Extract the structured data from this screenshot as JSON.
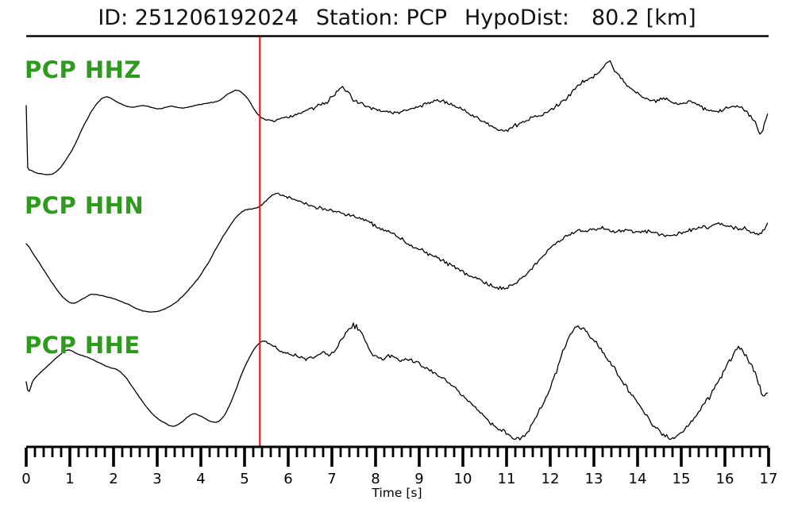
{
  "header": {
    "id_text": "ID: 251206192024",
    "station_text": "Station: PCP",
    "hypodist_label": "HypoDist:",
    "hypodist_value": "80.2 [km]"
  },
  "chart_data": {
    "type": "line",
    "kind": "three-component seismogram (waveform viewer)",
    "title": "ID: 251206192024   Station: PCP   HypoDist:    80.2 [km]",
    "xlabel": "Time [s]",
    "ylabel": "",
    "x_range": [
      0,
      17
    ],
    "x_major_tick_step": 1,
    "x_minor_tick_step": 0.2,
    "x_tick_labels": [
      "0",
      "1",
      "2",
      "3",
      "4",
      "5",
      "6",
      "7",
      "8",
      "9",
      "10",
      "11",
      "12",
      "13",
      "14",
      "15",
      "16",
      "17"
    ],
    "grid": false,
    "legend_position": "trace label at top-left of each row",
    "marker_line": {
      "name": "phase-pick",
      "t": 5.35,
      "color": "#ff0000"
    },
    "colors": {
      "trace": "#000000",
      "label_green": "#2e9b1e",
      "axis": "#000000",
      "title_text": "#111111",
      "background": "#ffffff"
    },
    "series": [
      {
        "label": "PCP HHZ",
        "seed": 101,
        "keypoints": [
          [
            0,
            12
          ],
          [
            0.01,
            -60
          ],
          [
            0.13,
            -70
          ],
          [
            0.35,
            -74
          ],
          [
            0.67,
            -72
          ],
          [
            1.04,
            -45
          ],
          [
            1.4,
            -5
          ],
          [
            1.67,
            17
          ],
          [
            1.85,
            23
          ],
          [
            2.13,
            15
          ],
          [
            2.4,
            10
          ],
          [
            2.67,
            12
          ],
          [
            3.04,
            8
          ],
          [
            3.31,
            11
          ],
          [
            3.58,
            9
          ],
          [
            3.85,
            12
          ],
          [
            4.13,
            15
          ],
          [
            4.4,
            18
          ],
          [
            4.67,
            28
          ],
          [
            4.85,
            31
          ],
          [
            5.07,
            21
          ],
          [
            5.25,
            5
          ],
          [
            5.4,
            -3
          ],
          [
            5.58,
            -7
          ],
          [
            5.85,
            -4
          ],
          [
            6.22,
            2
          ],
          [
            6.58,
            9
          ],
          [
            6.89,
            17
          ],
          [
            7.13,
            30
          ],
          [
            7.25,
            33
          ],
          [
            7.49,
            20
          ],
          [
            7.76,
            12
          ],
          [
            8.09,
            6
          ],
          [
            8.4,
            3
          ],
          [
            8.67,
            5
          ],
          [
            8.95,
            10
          ],
          [
            9.22,
            15
          ],
          [
            9.49,
            18
          ],
          [
            9.8,
            12
          ],
          [
            10.13,
            2
          ],
          [
            10.49,
            -8
          ],
          [
            10.89,
            -20
          ],
          [
            11.22,
            -13
          ],
          [
            11.55,
            -5
          ],
          [
            11.85,
            2
          ],
          [
            12.13,
            11
          ],
          [
            12.4,
            23
          ],
          [
            12.67,
            39
          ],
          [
            12.95,
            48
          ],
          [
            13.16,
            57
          ],
          [
            13.33,
            67
          ],
          [
            13.55,
            50
          ],
          [
            13.76,
            37
          ],
          [
            14.04,
            25
          ],
          [
            14.31,
            18
          ],
          [
            14.64,
            20
          ],
          [
            14.95,
            14
          ],
          [
            15.22,
            17
          ],
          [
            15.55,
            8
          ],
          [
            15.85,
            5
          ],
          [
            16.09,
            10
          ],
          [
            16.31,
            11
          ],
          [
            16.53,
            2
          ],
          [
            16.71,
            -10
          ],
          [
            16.8,
            -23
          ],
          [
            16.89,
            -13
          ],
          [
            17,
            2
          ]
        ],
        "noise": [
          [
            0,
            0.3
          ],
          [
            5.2,
            0.4
          ],
          [
            5.45,
            1.2
          ],
          [
            6,
            1.8
          ],
          [
            6.8,
            2.2
          ],
          [
            7.1,
            3.2
          ],
          [
            7.4,
            3.0
          ],
          [
            7.8,
            2.0
          ],
          [
            8.3,
            1.8
          ],
          [
            9,
            2.2
          ],
          [
            9.6,
            2.0
          ],
          [
            10.3,
            1.8
          ],
          [
            11,
            2.0
          ],
          [
            11.8,
            2.0
          ],
          [
            12.5,
            2.2
          ],
          [
            13.2,
            2.4
          ],
          [
            13.6,
            2.6
          ],
          [
            14.2,
            2.2
          ],
          [
            15,
            1.8
          ],
          [
            15.8,
            2.0
          ],
          [
            16.4,
            2.4
          ],
          [
            16.75,
            3.0
          ],
          [
            17,
            2.0
          ]
        ]
      },
      {
        "label": "PCP HHN",
        "seed": 202,
        "keypoints": [
          [
            0,
            3
          ],
          [
            0.16,
            -10
          ],
          [
            0.4,
            -30
          ],
          [
            0.64,
            -50
          ],
          [
            0.85,
            -65
          ],
          [
            1.07,
            -72
          ],
          [
            1.31,
            -66
          ],
          [
            1.49,
            -61
          ],
          [
            1.76,
            -63
          ],
          [
            2.04,
            -67
          ],
          [
            2.31,
            -73
          ],
          [
            2.58,
            -80
          ],
          [
            2.85,
            -83
          ],
          [
            3.13,
            -80
          ],
          [
            3.4,
            -72
          ],
          [
            3.67,
            -58
          ],
          [
            3.95,
            -40
          ],
          [
            4.18,
            -20
          ],
          [
            4.4,
            2
          ],
          [
            4.64,
            23
          ],
          [
            4.82,
            37
          ],
          [
            5.0,
            45
          ],
          [
            5.18,
            47
          ],
          [
            5.35,
            50
          ],
          [
            5.55,
            60
          ],
          [
            5.71,
            66
          ],
          [
            5.91,
            63
          ],
          [
            6.16,
            58
          ],
          [
            6.45,
            52
          ],
          [
            6.73,
            48
          ],
          [
            7.0,
            45
          ],
          [
            7.27,
            41
          ],
          [
            7.55,
            37
          ],
          [
            7.82,
            31
          ],
          [
            8.13,
            22
          ],
          [
            8.44,
            14
          ],
          [
            8.76,
            2
          ],
          [
            9.07,
            -6
          ],
          [
            9.36,
            -13
          ],
          [
            9.67,
            -22
          ],
          [
            9.98,
            -32
          ],
          [
            10.27,
            -40
          ],
          [
            10.58,
            -48
          ],
          [
            10.85,
            -53
          ],
          [
            11.13,
            -50
          ],
          [
            11.36,
            -40
          ],
          [
            11.58,
            -28
          ],
          [
            11.84,
            -12
          ],
          [
            12.09,
            2
          ],
          [
            12.35,
            12
          ],
          [
            12.62,
            18
          ],
          [
            12.89,
            21
          ],
          [
            13.18,
            22
          ],
          [
            13.45,
            18
          ],
          [
            13.73,
            20
          ],
          [
            14.0,
            17
          ],
          [
            14.27,
            19
          ],
          [
            14.55,
            15
          ],
          [
            14.82,
            13
          ],
          [
            15.07,
            18
          ],
          [
            15.35,
            22
          ],
          [
            15.62,
            25
          ],
          [
            15.85,
            28
          ],
          [
            16.07,
            25
          ],
          [
            16.31,
            23
          ],
          [
            16.55,
            19
          ],
          [
            16.75,
            15
          ],
          [
            16.89,
            20
          ],
          [
            17,
            29
          ]
        ],
        "noise": [
          [
            0,
            0.3
          ],
          [
            5.3,
            0.4
          ],
          [
            5.7,
            1.0
          ],
          [
            6.3,
            1.6
          ],
          [
            7,
            2.0
          ],
          [
            8,
            2.2
          ],
          [
            9,
            2.2
          ],
          [
            10,
            2.0
          ],
          [
            10.8,
            2.2
          ],
          [
            11.5,
            1.8
          ],
          [
            12.3,
            1.8
          ],
          [
            13,
            2.0
          ],
          [
            13.8,
            2.2
          ],
          [
            14.5,
            2.0
          ],
          [
            15.2,
            2.2
          ],
          [
            16,
            2.2
          ],
          [
            16.6,
            2.4
          ],
          [
            17,
            1.8
          ]
        ]
      },
      {
        "label": "PCP HHE",
        "seed": 303,
        "keypoints": [
          [
            0,
            -1
          ],
          [
            0.05,
            -14
          ],
          [
            0.15,
            0
          ],
          [
            0.31,
            10
          ],
          [
            0.49,
            19
          ],
          [
            0.71,
            30
          ],
          [
            0.95,
            39
          ],
          [
            1.18,
            34
          ],
          [
            1.44,
            29
          ],
          [
            1.67,
            23
          ],
          [
            1.91,
            17
          ],
          [
            2.09,
            14
          ],
          [
            2.27,
            5
          ],
          [
            2.45,
            -9
          ],
          [
            2.64,
            -24
          ],
          [
            2.82,
            -37
          ],
          [
            3.0,
            -47
          ],
          [
            3.18,
            -53
          ],
          [
            3.35,
            -57
          ],
          [
            3.53,
            -53
          ],
          [
            3.71,
            -45
          ],
          [
            3.84,
            -41
          ],
          [
            3.98,
            -44
          ],
          [
            4.15,
            -49
          ],
          [
            4.31,
            -52
          ],
          [
            4.45,
            -49
          ],
          [
            4.6,
            -37
          ],
          [
            4.78,
            -14
          ],
          [
            4.96,
            12
          ],
          [
            5.13,
            31
          ],
          [
            5.27,
            44
          ],
          [
            5.42,
            50
          ],
          [
            5.6,
            46
          ],
          [
            5.8,
            39
          ],
          [
            6.0,
            34
          ],
          [
            6.2,
            31
          ],
          [
            6.4,
            28
          ],
          [
            6.6,
            31
          ],
          [
            6.8,
            36
          ],
          [
            7.0,
            34
          ],
          [
            7.22,
            52
          ],
          [
            7.42,
            66
          ],
          [
            7.56,
            69
          ],
          [
            7.75,
            52
          ],
          [
            7.93,
            34
          ],
          [
            8.13,
            28
          ],
          [
            8.35,
            32
          ],
          [
            8.55,
            26
          ],
          [
            8.78,
            27
          ],
          [
            9.04,
            20
          ],
          [
            9.29,
            12
          ],
          [
            9.55,
            3
          ],
          [
            9.8,
            -8
          ],
          [
            10.05,
            -22
          ],
          [
            10.29,
            -34
          ],
          [
            10.53,
            -47
          ],
          [
            10.76,
            -59
          ],
          [
            11.02,
            -67
          ],
          [
            11.24,
            -73
          ],
          [
            11.44,
            -67
          ],
          [
            11.6,
            -52
          ],
          [
            11.76,
            -36
          ],
          [
            11.95,
            -16
          ],
          [
            12.13,
            11
          ],
          [
            12.31,
            39
          ],
          [
            12.47,
            59
          ],
          [
            12.6,
            68
          ],
          [
            12.78,
            64
          ],
          [
            12.96,
            54
          ],
          [
            13.15,
            41
          ],
          [
            13.33,
            27
          ],
          [
            13.51,
            11
          ],
          [
            13.69,
            -3
          ],
          [
            13.87,
            -17
          ],
          [
            14.05,
            -31
          ],
          [
            14.24,
            -46
          ],
          [
            14.42,
            -59
          ],
          [
            14.6,
            -68
          ],
          [
            14.76,
            -72
          ],
          [
            14.95,
            -68
          ],
          [
            15.13,
            -58
          ],
          [
            15.31,
            -46
          ],
          [
            15.49,
            -32
          ],
          [
            15.67,
            -18
          ],
          [
            15.85,
            0
          ],
          [
            16.02,
            17
          ],
          [
            16.16,
            31
          ],
          [
            16.27,
            42
          ],
          [
            16.44,
            36
          ],
          [
            16.58,
            24
          ],
          [
            16.69,
            10
          ],
          [
            16.8,
            -7
          ],
          [
            16.87,
            -19
          ],
          [
            16.93,
            -14
          ],
          [
            17,
            -17
          ]
        ],
        "noise": [
          [
            0,
            0.2
          ],
          [
            5.3,
            0.3
          ],
          [
            5.6,
            1.2
          ],
          [
            6.2,
            1.8
          ],
          [
            6.9,
            2.2
          ],
          [
            7.3,
            3.2
          ],
          [
            7.6,
            3.4
          ],
          [
            8,
            2.4
          ],
          [
            8.8,
            2.0
          ],
          [
            9.6,
            2.2
          ],
          [
            10.4,
            2.6
          ],
          [
            11.1,
            2.4
          ],
          [
            11.8,
            2.2
          ],
          [
            12.5,
            2.6
          ],
          [
            13.2,
            2.6
          ],
          [
            14,
            2.2
          ],
          [
            14.8,
            2.0
          ],
          [
            15.6,
            2.4
          ],
          [
            16.2,
            2.8
          ],
          [
            16.7,
            3.4
          ],
          [
            17,
            2.6
          ]
        ]
      }
    ]
  }
}
